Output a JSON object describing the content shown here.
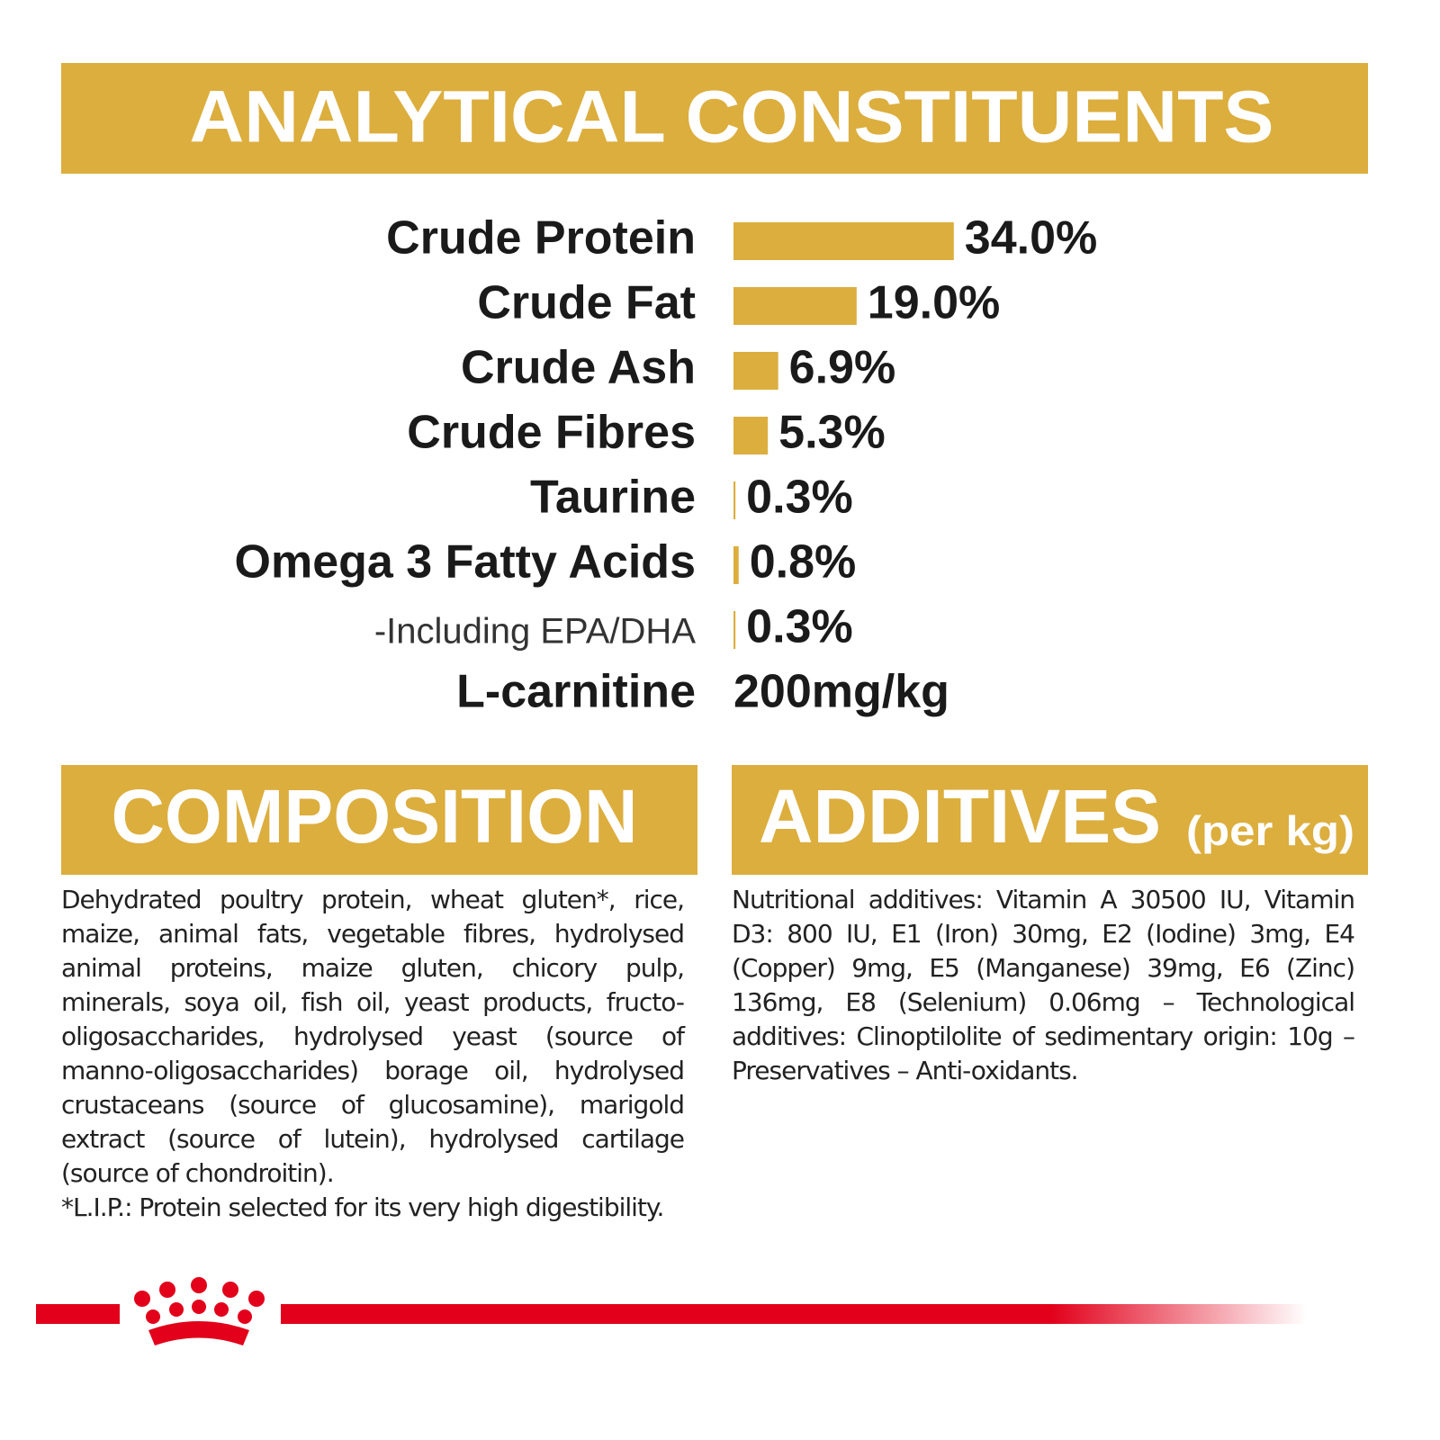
{
  "header": {
    "title": "ANALYTICAL CONSTITUENTS"
  },
  "constituents": {
    "type": "bar",
    "categories": [
      "Crude Protein",
      "Crude Fat",
      "Crude Ash",
      "Crude Fibres",
      "Taurine",
      "Omega 3 Fatty Acids",
      "-Including EPA/DHA"
    ],
    "values": [
      34,
      19,
      6.9,
      5.3,
      0.3,
      0.8,
      0.3
    ],
    "value_labels": [
      "34.0%",
      "19.0%",
      "6.9%",
      "5.3%",
      "0.3%",
      "0.8%",
      "0.3%"
    ],
    "color": "#dcae3e"
  },
  "carnitine": {
    "label": "L-carnitine",
    "value": "200mg/kg"
  },
  "composition": {
    "title": "COMPOSITION",
    "text": "Dehydrated poultry protein, wheat gluten*, rice, maize, animal fats, vegetable fibres, hydrolysed animal proteins, maize gluten, chicory pulp, minerals, soya oil, fish oil, yeast products, fructo-oligosaccharides, hydrolysed yeast (source of manno-oligosaccharides) borage oil, hydrolysed crustaceans (source of glucosamine), marigold extract (source of lutein), hydrolysed cartilage (source of chondroitin).",
    "note": "*L.I.P.: Protein selected for its very high digestibility."
  },
  "additives": {
    "title": "ADDITIVES",
    "unit": "(per kg)",
    "text": "Nutritional additives: Vitamin A 30500 IU, Vitamin D3: 800 IU, E1 (Iron) 30mg, E2 (Iodine) 3mg, E4 (Copper) 9mg, E5 (Manganese) 39mg, E6 (Zinc) 136mg, E8 (Selenium) 0.06mg – Technological additives: Clinoptilolite of sedimentary origin: 10g – Preservatives – Anti-oxidants."
  }
}
